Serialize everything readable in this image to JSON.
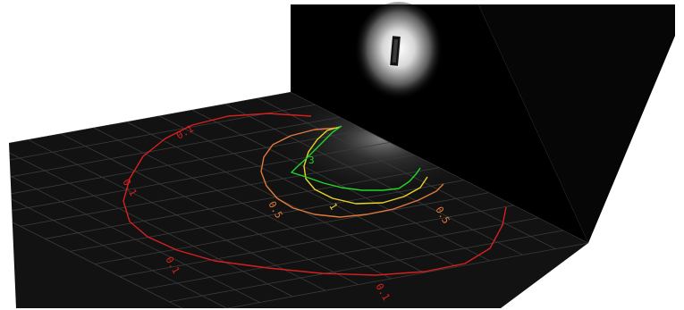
{
  "colors": {
    "background": "#ffffff",
    "floor": "#121212",
    "wall_back": "#000000",
    "wall_right": "#070707",
    "grid": "#3a3a3a",
    "contour_0_1": "#d62020",
    "contour_0_5": "#e07a3a",
    "contour_1": "#e6d52a",
    "contour_3": "#22d42a",
    "luminaire_glow": "#ffffff"
  },
  "luminaire": {
    "icon": "wall-luminaire-icon"
  },
  "contours": [
    {
      "id": "c0_1",
      "label": "0.1",
      "color_key": "contour_0_1"
    },
    {
      "id": "c0_5",
      "label": "0.5",
      "color_key": "contour_0_5"
    },
    {
      "id": "c1",
      "label": "1",
      "color_key": "contour_1"
    },
    {
      "id": "c3",
      "label": "3",
      "color_key": "contour_3"
    }
  ]
}
